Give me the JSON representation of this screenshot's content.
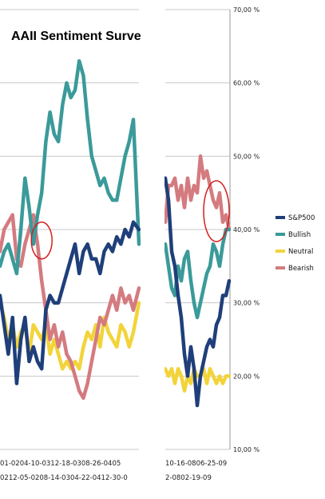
{
  "chart_data": {
    "type": "line",
    "title": "AAII Sentiment Surve",
    "y_ticks": [
      "70,00 %",
      "60,00 %",
      "50,00 %",
      "40,00 %",
      "30,00 %",
      "20,00 %",
      "10,00 %"
    ],
    "ylim": [
      10,
      70
    ],
    "grid": true,
    "legend_position": "right",
    "x_ticks_left_row1": "01-0204-10-0312-18-0308-26-0405",
    "x_ticks_left_row2": "0212-05-0208-14-0304-22-0412-30-0",
    "x_ticks_right_row1": "10-16-0806-25-09",
    "x_ticks_right_row2": "2-0802-19-09",
    "series": [
      {
        "name": "S&P500",
        "color": "#1f3f7a",
        "panels": {
          "left": [
            [
              0.0,
              31
            ],
            [
              0.03,
              27
            ],
            [
              0.06,
              23
            ],
            [
              0.09,
              28
            ],
            [
              0.12,
              19
            ],
            [
              0.15,
              25
            ],
            [
              0.18,
              28
            ],
            [
              0.21,
              22
            ],
            [
              0.24,
              24
            ],
            [
              0.27,
              22
            ],
            [
              0.3,
              21
            ],
            [
              0.33,
              29
            ],
            [
              0.36,
              31
            ],
            [
              0.39,
              30
            ],
            [
              0.42,
              30
            ],
            [
              0.45,
              32
            ],
            [
              0.48,
              34
            ],
            [
              0.51,
              36
            ],
            [
              0.54,
              38
            ],
            [
              0.57,
              34
            ],
            [
              0.6,
              37
            ],
            [
              0.63,
              38
            ],
            [
              0.66,
              36
            ],
            [
              0.69,
              36
            ],
            [
              0.72,
              34
            ],
            [
              0.75,
              37
            ],
            [
              0.78,
              38
            ],
            [
              0.81,
              37
            ],
            [
              0.84,
              39
            ],
            [
              0.87,
              38
            ],
            [
              0.9,
              40
            ],
            [
              0.93,
              39
            ],
            [
              0.96,
              41
            ],
            [
              1.0,
              40
            ]
          ],
          "right": [
            [
              0.0,
              47
            ],
            [
              0.05,
              44
            ],
            [
              0.1,
              37
            ],
            [
              0.15,
              35
            ],
            [
              0.2,
              31
            ],
            [
              0.25,
              28
            ],
            [
              0.3,
              23
            ],
            [
              0.35,
              20
            ],
            [
              0.4,
              24
            ],
            [
              0.45,
              21
            ],
            [
              0.5,
              16
            ],
            [
              0.55,
              20
            ],
            [
              0.6,
              22
            ],
            [
              0.65,
              24
            ],
            [
              0.7,
              25
            ],
            [
              0.75,
              24
            ],
            [
              0.8,
              27
            ],
            [
              0.85,
              28
            ],
            [
              0.9,
              31
            ],
            [
              0.95,
              31
            ],
            [
              1.0,
              33
            ]
          ]
        }
      },
      {
        "name": "Bullish",
        "color": "#3b9a9a",
        "panels": {
          "left": [
            [
              0.0,
              35
            ],
            [
              0.03,
              37
            ],
            [
              0.06,
              38
            ],
            [
              0.09,
              36
            ],
            [
              0.12,
              34
            ],
            [
              0.15,
              40
            ],
            [
              0.18,
              47
            ],
            [
              0.21,
              43
            ],
            [
              0.24,
              38
            ],
            [
              0.27,
              42
            ],
            [
              0.3,
              45
            ],
            [
              0.33,
              52
            ],
            [
              0.36,
              56
            ],
            [
              0.39,
              53
            ],
            [
              0.42,
              52
            ],
            [
              0.45,
              57
            ],
            [
              0.48,
              60
            ],
            [
              0.51,
              58
            ],
            [
              0.54,
              59
            ],
            [
              0.57,
              63
            ],
            [
              0.6,
              61
            ],
            [
              0.63,
              55
            ],
            [
              0.66,
              50
            ],
            [
              0.69,
              48
            ],
            [
              0.72,
              46
            ],
            [
              0.75,
              47
            ],
            [
              0.78,
              45
            ],
            [
              0.81,
              44
            ],
            [
              0.84,
              44
            ],
            [
              0.87,
              47
            ],
            [
              0.9,
              50
            ],
            [
              0.93,
              52
            ],
            [
              0.96,
              55
            ],
            [
              1.0,
              38
            ]
          ],
          "right": [
            [
              0.0,
              38
            ],
            [
              0.05,
              35
            ],
            [
              0.1,
              32
            ],
            [
              0.15,
              31
            ],
            [
              0.2,
              35
            ],
            [
              0.25,
              33
            ],
            [
              0.3,
              36
            ],
            [
              0.35,
              37
            ],
            [
              0.4,
              33
            ],
            [
              0.45,
              30
            ],
            [
              0.5,
              28
            ],
            [
              0.55,
              30
            ],
            [
              0.6,
              32
            ],
            [
              0.65,
              34
            ],
            [
              0.7,
              35
            ],
            [
              0.75,
              38
            ],
            [
              0.8,
              37
            ],
            [
              0.85,
              35
            ],
            [
              0.9,
              38
            ],
            [
              0.95,
              40
            ],
            [
              1.0,
              40
            ]
          ]
        }
      },
      {
        "name": "Neutral",
        "color": "#f2d43a",
        "panels": {
          "left": [
            [
              0.0,
              30
            ],
            [
              0.03,
              28
            ],
            [
              0.06,
              25
            ],
            [
              0.09,
              27
            ],
            [
              0.12,
              24
            ],
            [
              0.15,
              26
            ],
            [
              0.18,
              27
            ],
            [
              0.21,
              23
            ],
            [
              0.24,
              27
            ],
            [
              0.27,
              26
            ],
            [
              0.3,
              25
            ],
            [
              0.33,
              27
            ],
            [
              0.36,
              23
            ],
            [
              0.39,
              25
            ],
            [
              0.42,
              23
            ],
            [
              0.45,
              21
            ],
            [
              0.48,
              22
            ],
            [
              0.51,
              21
            ],
            [
              0.54,
              22
            ],
            [
              0.57,
              21
            ],
            [
              0.6,
              24
            ],
            [
              0.63,
              26
            ],
            [
              0.66,
              25
            ],
            [
              0.69,
              27
            ],
            [
              0.72,
              24
            ],
            [
              0.75,
              28
            ],
            [
              0.78,
              26
            ],
            [
              0.81,
              25
            ],
            [
              0.84,
              24
            ],
            [
              0.87,
              27
            ],
            [
              0.9,
              26
            ],
            [
              0.93,
              24
            ],
            [
              0.96,
              26
            ],
            [
              1.0,
              30
            ]
          ],
          "right": [
            [
              0.0,
              21
            ],
            [
              0.05,
              20
            ],
            [
              0.1,
              21
            ],
            [
              0.15,
              19
            ],
            [
              0.2,
              21
            ],
            [
              0.25,
              20
            ],
            [
              0.3,
              18
            ],
            [
              0.35,
              20
            ],
            [
              0.4,
              19
            ],
            [
              0.45,
              21
            ],
            [
              0.5,
              20
            ],
            [
              0.55,
              20
            ],
            [
              0.6,
              21
            ],
            [
              0.65,
              19
            ],
            [
              0.7,
              21
            ],
            [
              0.75,
              20
            ],
            [
              0.8,
              19
            ],
            [
              0.85,
              20
            ],
            [
              0.9,
              19
            ],
            [
              0.95,
              20
            ],
            [
              1.0,
              20
            ]
          ]
        }
      },
      {
        "name": "Bearish",
        "color": "#d47b80",
        "panels": {
          "left": [
            [
              0.0,
              37
            ],
            [
              0.03,
              40
            ],
            [
              0.06,
              41
            ],
            [
              0.09,
              42
            ],
            [
              0.12,
              36
            ],
            [
              0.15,
              35
            ],
            [
              0.18,
              38
            ],
            [
              0.21,
              40
            ],
            [
              0.24,
              42
            ],
            [
              0.27,
              38
            ],
            [
              0.3,
              33
            ],
            [
              0.33,
              29
            ],
            [
              0.36,
              25
            ],
            [
              0.39,
              27
            ],
            [
              0.42,
              24
            ],
            [
              0.45,
              26
            ],
            [
              0.48,
              23
            ],
            [
              0.51,
              22
            ],
            [
              0.54,
              20
            ],
            [
              0.57,
              18
            ],
            [
              0.6,
              17
            ],
            [
              0.63,
              19
            ],
            [
              0.66,
              22
            ],
            [
              0.69,
              25
            ],
            [
              0.72,
              28
            ],
            [
              0.75,
              27
            ],
            [
              0.78,
              29
            ],
            [
              0.81,
              31
            ],
            [
              0.84,
              29
            ],
            [
              0.87,
              32
            ],
            [
              0.9,
              30
            ],
            [
              0.93,
              31
            ],
            [
              0.96,
              29
            ],
            [
              1.0,
              32
            ]
          ],
          "right": [
            [
              0.0,
              41
            ],
            [
              0.05,
              46
            ],
            [
              0.1,
              46
            ],
            [
              0.15,
              47
            ],
            [
              0.2,
              44
            ],
            [
              0.25,
              46
            ],
            [
              0.3,
              43
            ],
            [
              0.35,
              47
            ],
            [
              0.4,
              44
            ],
            [
              0.45,
              46
            ],
            [
              0.5,
              45
            ],
            [
              0.55,
              50
            ],
            [
              0.6,
              47
            ],
            [
              0.65,
              48
            ],
            [
              0.7,
              46
            ],
            [
              0.75,
              44
            ],
            [
              0.8,
              43
            ],
            [
              0.85,
              45
            ],
            [
              0.9,
              41
            ],
            [
              0.95,
              42
            ],
            [
              1.0,
              40
            ]
          ]
        }
      }
    ],
    "annotations": [
      {
        "type": "ellipse",
        "panel": "left",
        "x": 0.3,
        "y": 38.5
      },
      {
        "type": "ellipse",
        "panel": "right",
        "x": 0.8,
        "y": 42.5
      }
    ]
  }
}
